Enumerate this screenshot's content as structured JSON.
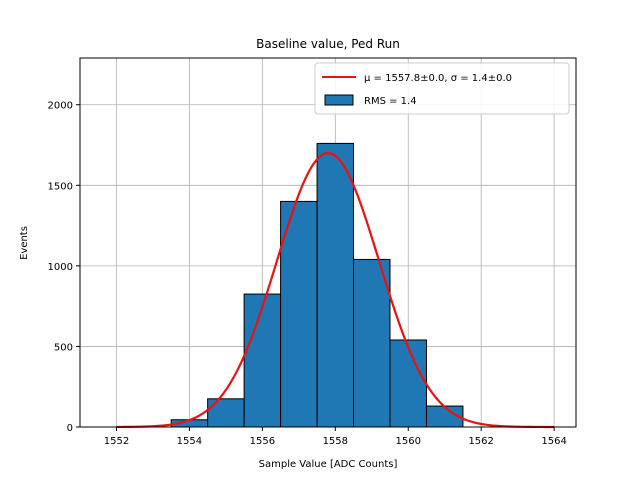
{
  "chart_data": {
    "type": "bar",
    "title": "Baseline value, Ped Run",
    "xlabel": "Sample Value [ADC Counts]",
    "ylabel": "Events",
    "xlim": [
      1551,
      1564.6
    ],
    "ylim": [
      0,
      2290
    ],
    "grid": true,
    "legend_position": "top-right",
    "x_ticks": [
      "1552",
      "1554",
      "1556",
      "1558",
      "1560",
      "1562",
      "1564"
    ],
    "x_tick_values": [
      1552,
      1554,
      1556,
      1558,
      1560,
      1562,
      1564
    ],
    "y_ticks": [
      "0",
      "500",
      "1000",
      "1500",
      "2000"
    ],
    "y_tick_values": [
      0,
      500,
      1000,
      1500,
      2000
    ],
    "histogram": {
      "name": "RMS = 1.4",
      "color": "#1f77b4",
      "bins": [
        {
          "left": 1553.5,
          "right": 1554.5,
          "value": 45
        },
        {
          "left": 1554.5,
          "right": 1555.5,
          "value": 175
        },
        {
          "left": 1555.5,
          "right": 1556.5,
          "value": 825
        },
        {
          "left": 1556.5,
          "right": 1557.5,
          "value": 1400
        },
        {
          "left": 1557.5,
          "right": 1558.5,
          "value": 1760
        },
        {
          "left": 1558.5,
          "right": 1559.5,
          "value": 1040
        },
        {
          "left": 1559.5,
          "right": 1560.5,
          "value": 540
        },
        {
          "left": 1560.5,
          "right": 1561.5,
          "value": 130
        }
      ]
    },
    "fit": {
      "name_prefix": "μ = 1557.8±0.0, σ = 1.4±0.0",
      "color": "#ee1111",
      "mu": 1557.8,
      "sigma": 1.4,
      "amplitude": 1700,
      "x_range": [
        1552,
        1564
      ]
    }
  }
}
